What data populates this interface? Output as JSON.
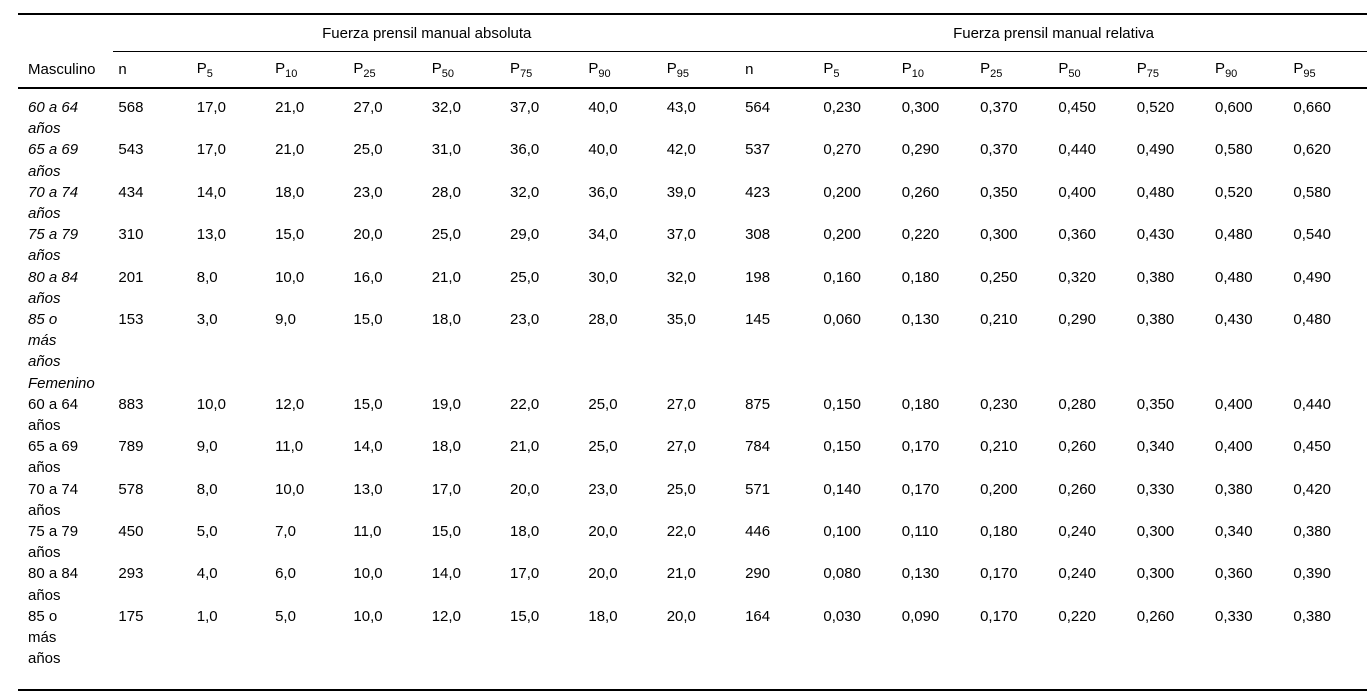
{
  "table": {
    "group_headers": {
      "absolute": "Fuerza prensil manual absoluta",
      "relative": "Fuerza prensil manual relativa"
    },
    "first_column_header": "Masculino",
    "columns": [
      {
        "base": "n",
        "sub": ""
      },
      {
        "base": "P",
        "sub": "5"
      },
      {
        "base": "P",
        "sub": "10"
      },
      {
        "base": "P",
        "sub": "25"
      },
      {
        "base": "P",
        "sub": "50"
      },
      {
        "base": "P",
        "sub": "75"
      },
      {
        "base": "P",
        "sub": "90"
      },
      {
        "base": "P",
        "sub": "95"
      },
      {
        "base": "n",
        "sub": ""
      },
      {
        "base": "P",
        "sub": "5"
      },
      {
        "base": "P",
        "sub": "10"
      },
      {
        "base": "P",
        "sub": "25"
      },
      {
        "base": "P",
        "sub": "50"
      },
      {
        "base": "P",
        "sub": "75"
      },
      {
        "base": "P",
        "sub": "90"
      },
      {
        "base": "P",
        "sub": "95"
      }
    ],
    "rows": [
      {
        "label": "60 a 64 años",
        "italic": true,
        "section": false,
        "values": [
          "568",
          "17,0",
          "21,0",
          "27,0",
          "32,0",
          "37,0",
          "40,0",
          "43,0",
          "564",
          "0,230",
          "0,300",
          "0,370",
          "0,450",
          "0,520",
          "0,600",
          "0,660"
        ]
      },
      {
        "label": "65 a 69 años",
        "italic": true,
        "section": false,
        "values": [
          "543",
          "17,0",
          "21,0",
          "25,0",
          "31,0",
          "36,0",
          "40,0",
          "42,0",
          "537",
          "0,270",
          "0,290",
          "0,370",
          "0,440",
          "0,490",
          "0,580",
          "0,620"
        ]
      },
      {
        "label": "70 a 74 años",
        "italic": true,
        "section": false,
        "values": [
          "434",
          "14,0",
          "18,0",
          "23,0",
          "28,0",
          "32,0",
          "36,0",
          "39,0",
          "423",
          "0,200",
          "0,260",
          "0,350",
          "0,400",
          "0,480",
          "0,520",
          "0,580"
        ]
      },
      {
        "label": "75 a 79 años",
        "italic": true,
        "section": false,
        "values": [
          "310",
          "13,0",
          "15,0",
          "20,0",
          "25,0",
          "29,0",
          "34,0",
          "37,0",
          "308",
          "0,200",
          "0,220",
          "0,300",
          "0,360",
          "0,430",
          "0,480",
          "0,540"
        ]
      },
      {
        "label": "80 a 84 años",
        "italic": true,
        "section": false,
        "values": [
          "201",
          "8,0",
          "10,0",
          "16,0",
          "21,0",
          "25,0",
          "30,0",
          "32,0",
          "198",
          "0,160",
          "0,180",
          "0,250",
          "0,320",
          "0,380",
          "0,480",
          "0,490"
        ]
      },
      {
        "label": "85 o más años",
        "italic": true,
        "section": false,
        "values": [
          "153",
          "3,0",
          "9,0",
          "15,0",
          "18,0",
          "23,0",
          "28,0",
          "35,0",
          "145",
          "0,060",
          "0,130",
          "0,210",
          "0,290",
          "0,380",
          "0,430",
          "0,480"
        ]
      },
      {
        "label": "Femenino",
        "italic": true,
        "section": true,
        "values": [
          "",
          "",
          "",
          "",
          "",
          "",
          "",
          "",
          "",
          "",
          "",
          "",
          "",
          "",
          "",
          ""
        ]
      },
      {
        "label": "60 a 64 años",
        "italic": false,
        "section": false,
        "values": [
          "883",
          "10,0",
          "12,0",
          "15,0",
          "19,0",
          "22,0",
          "25,0",
          "27,0",
          "875",
          "0,150",
          "0,180",
          "0,230",
          "0,280",
          "0,350",
          "0,400",
          "0,440"
        ]
      },
      {
        "label": "65 a 69 años",
        "italic": false,
        "section": false,
        "values": [
          "789",
          "9,0",
          "11,0",
          "14,0",
          "18,0",
          "21,0",
          "25,0",
          "27,0",
          "784",
          "0,150",
          "0,170",
          "0,210",
          "0,260",
          "0,340",
          "0,400",
          "0,450"
        ]
      },
      {
        "label": "70 a 74 años",
        "italic": false,
        "section": false,
        "values": [
          "578",
          "8,0",
          "10,0",
          "13,0",
          "17,0",
          "20,0",
          "23,0",
          "25,0",
          "571",
          "0,140",
          "0,170",
          "0,200",
          "0,260",
          "0,330",
          "0,380",
          "0,420"
        ]
      },
      {
        "label": "75 a 79 años",
        "italic": false,
        "section": false,
        "values": [
          "450",
          "5,0",
          "7,0",
          "11,0",
          "15,0",
          "18,0",
          "20,0",
          "22,0",
          "446",
          "0,100",
          "0,110",
          "0,180",
          "0,240",
          "0,300",
          "0,340",
          "0,380"
        ]
      },
      {
        "label": "80 a 84 años",
        "italic": false,
        "section": false,
        "values": [
          "293",
          "4,0",
          "6,0",
          "10,0",
          "14,0",
          "17,0",
          "20,0",
          "21,0",
          "290",
          "0,080",
          "0,130",
          "0,170",
          "0,240",
          "0,300",
          "0,360",
          "0,390"
        ]
      },
      {
        "label": "85 o más años",
        "italic": false,
        "section": false,
        "values": [
          "175",
          "1,0",
          "5,0",
          "10,0",
          "12,0",
          "15,0",
          "18,0",
          "20,0",
          "164",
          "0,030",
          "0,090",
          "0,170",
          "0,220",
          "0,260",
          "0,330",
          "0,380"
        ]
      }
    ]
  }
}
